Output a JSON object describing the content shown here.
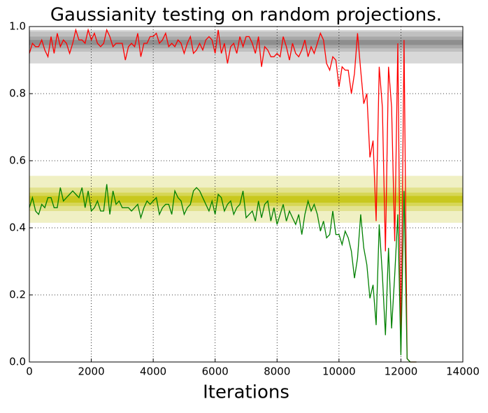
{
  "chart_data": {
    "type": "line",
    "title": "Gaussianity testing on random projections.",
    "xlabel": "Iterations",
    "x": [
      0,
      100,
      200,
      300,
      400,
      500,
      600,
      700,
      800,
      900,
      1000,
      1100,
      1200,
      1300,
      1400,
      1500,
      1600,
      1700,
      1800,
      1900,
      2000,
      2100,
      2200,
      2300,
      2400,
      2500,
      2600,
      2700,
      2800,
      2900,
      3000,
      3100,
      3200,
      3300,
      3400,
      3500,
      3600,
      3700,
      3800,
      3900,
      4000,
      4100,
      4200,
      4300,
      4400,
      4500,
      4600,
      4700,
      4800,
      4900,
      5000,
      5100,
      5200,
      5300,
      5400,
      5500,
      5600,
      5700,
      5800,
      5900,
      6000,
      6100,
      6200,
      6300,
      6400,
      6500,
      6600,
      6700,
      6800,
      6900,
      7000,
      7100,
      7200,
      7300,
      7400,
      7500,
      7600,
      7700,
      7800,
      7900,
      8000,
      8100,
      8200,
      8300,
      8400,
      8500,
      8600,
      8700,
      8800,
      8900,
      9000,
      9100,
      9200,
      9300,
      9400,
      9500,
      9600,
      9700,
      9800,
      9900,
      10000,
      10100,
      10200,
      10300,
      10400,
      10500,
      10600,
      10700,
      10800,
      10900,
      11000,
      11100,
      11200,
      11300,
      11400,
      11500,
      11600,
      11700,
      11800,
      11900,
      12000,
      12100,
      12200,
      12300,
      12400,
      12500
    ],
    "series": [
      {
        "color": "#ff0000",
        "values": [
          0.92,
          0.95,
          0.94,
          0.94,
          0.96,
          0.93,
          0.91,
          0.97,
          0.92,
          0.98,
          0.94,
          0.96,
          0.95,
          0.92,
          0.95,
          0.99,
          0.96,
          0.96,
          0.95,
          0.99,
          0.96,
          0.98,
          0.95,
          0.94,
          0.95,
          0.99,
          0.97,
          0.94,
          0.95,
          0.95,
          0.95,
          0.9,
          0.94,
          0.95,
          0.94,
          0.98,
          0.91,
          0.95,
          0.95,
          0.97,
          0.97,
          0.98,
          0.95,
          0.96,
          0.98,
          0.94,
          0.95,
          0.94,
          0.96,
          0.95,
          0.92,
          0.95,
          0.97,
          0.92,
          0.93,
          0.95,
          0.93,
          0.96,
          0.97,
          0.96,
          0.92,
          0.99,
          0.92,
          0.95,
          0.89,
          0.94,
          0.95,
          0.92,
          0.97,
          0.94,
          0.97,
          0.97,
          0.95,
          0.92,
          0.97,
          0.88,
          0.94,
          0.93,
          0.91,
          0.91,
          0.92,
          0.91,
          0.97,
          0.94,
          0.9,
          0.95,
          0.92,
          0.91,
          0.93,
          0.96,
          0.91,
          0.94,
          0.92,
          0.95,
          0.98,
          0.96,
          0.89,
          0.87,
          0.91,
          0.9,
          0.82,
          0.88,
          0.87,
          0.87,
          0.8,
          0.86,
          0.98,
          0.87,
          0.77,
          0.8,
          0.61,
          0.66,
          0.42,
          0.88,
          0.76,
          0.33,
          0.88,
          0.76,
          0.36,
          0.95,
          0.03,
          0.96,
          0.01,
          0.0,
          0.0,
          0.0
        ]
      },
      {
        "color": "#008000",
        "values": [
          0.46,
          0.49,
          0.45,
          0.44,
          0.47,
          0.46,
          0.49,
          0.49,
          0.46,
          0.46,
          0.52,
          0.48,
          0.49,
          0.5,
          0.51,
          0.5,
          0.49,
          0.52,
          0.46,
          0.51,
          0.45,
          0.46,
          0.48,
          0.45,
          0.45,
          0.53,
          0.44,
          0.51,
          0.47,
          0.48,
          0.46,
          0.46,
          0.46,
          0.45,
          0.46,
          0.47,
          0.43,
          0.46,
          0.48,
          0.47,
          0.48,
          0.49,
          0.44,
          0.46,
          0.47,
          0.47,
          0.44,
          0.51,
          0.49,
          0.48,
          0.44,
          0.46,
          0.47,
          0.51,
          0.52,
          0.51,
          0.49,
          0.47,
          0.45,
          0.48,
          0.44,
          0.5,
          0.49,
          0.45,
          0.47,
          0.48,
          0.44,
          0.46,
          0.47,
          0.51,
          0.43,
          0.44,
          0.45,
          0.42,
          0.48,
          0.43,
          0.47,
          0.48,
          0.42,
          0.46,
          0.41,
          0.44,
          0.47,
          0.42,
          0.45,
          0.43,
          0.41,
          0.44,
          0.38,
          0.44,
          0.48,
          0.45,
          0.47,
          0.44,
          0.39,
          0.42,
          0.37,
          0.38,
          0.45,
          0.38,
          0.38,
          0.35,
          0.39,
          0.37,
          0.33,
          0.25,
          0.31,
          0.44,
          0.34,
          0.29,
          0.19,
          0.23,
          0.11,
          0.41,
          0.26,
          0.08,
          0.34,
          0.1,
          0.26,
          0.44,
          0.02,
          0.51,
          0.01,
          0.0,
          0.0,
          0.0
        ]
      }
    ],
    "bands": [
      {
        "ylim": [
          0.89,
          0.99
        ],
        "color": "#d8d8d8"
      },
      {
        "ylim": [
          0.925,
          0.985
        ],
        "color": "#c0c0c0"
      },
      {
        "ylim": [
          0.935,
          0.97
        ],
        "color": "#a8a8a8"
      },
      {
        "ylim": [
          0.945,
          0.96
        ],
        "color": "#8e8e8e"
      },
      {
        "ylim": [
          0.415,
          0.555
        ],
        "color": "#f0f0c4"
      },
      {
        "ylim": [
          0.45,
          0.52
        ],
        "color": "#e2e28e"
      },
      {
        "ylim": [
          0.465,
          0.505
        ],
        "color": "#d6d656"
      },
      {
        "ylim": [
          0.475,
          0.495
        ],
        "color": "#c8c81e"
      }
    ],
    "xlim": [
      0,
      14000
    ],
    "xticks": [
      0,
      2000,
      4000,
      6000,
      8000,
      10000,
      12000,
      14000
    ],
    "ylim": [
      0,
      1
    ],
    "yticks": [
      {
        "value": 0,
        "label": "0.0"
      },
      0.2,
      0.4,
      0.6,
      0.8,
      {
        "value": 1,
        "label": "1.0"
      }
    ],
    "grid": true
  }
}
